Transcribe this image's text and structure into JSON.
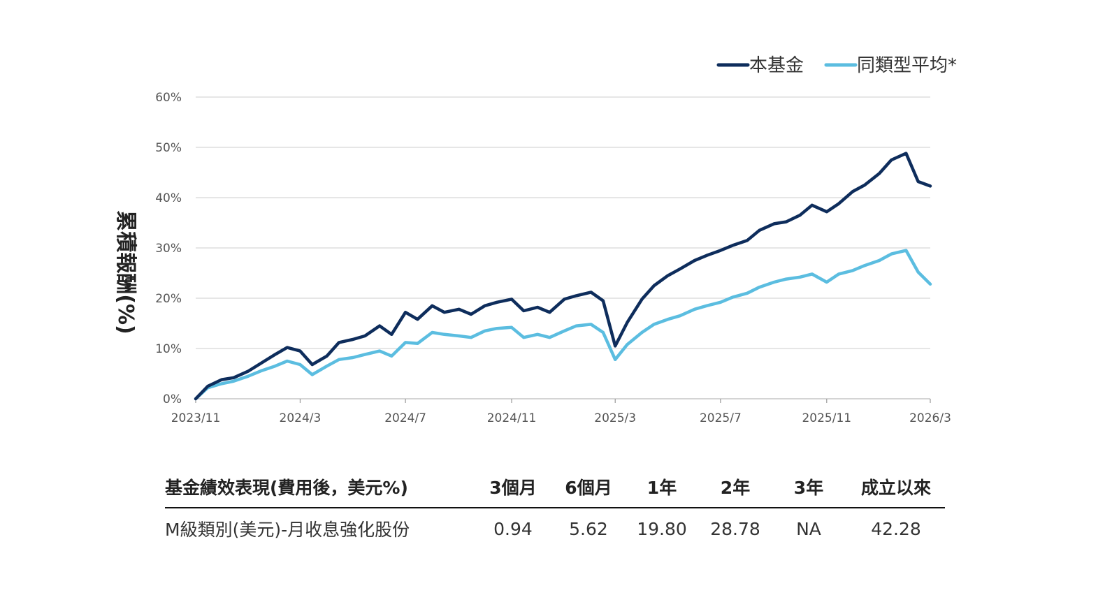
{
  "chart_data": {
    "type": "line",
    "ylabel": "累積報酬(%)",
    "ylim": [
      0,
      60
    ],
    "yticks": [
      "0%",
      "10%",
      "20%",
      "30%",
      "40%",
      "50%",
      "60%"
    ],
    "xticks": [
      "2023/11",
      "2024/3",
      "2024/7",
      "2024/11",
      "2025/3",
      "2025/7",
      "2025/11",
      "2026/3"
    ],
    "grid": true,
    "legend_position": "top-right",
    "x": [
      "2023-11-01",
      "2023-11-15",
      "2023-12-01",
      "2023-12-15",
      "2024-01-01",
      "2024-01-15",
      "2024-02-01",
      "2024-02-15",
      "2024-03-01",
      "2024-03-15",
      "2024-04-01",
      "2024-04-15",
      "2024-05-01",
      "2024-05-15",
      "2024-06-01",
      "2024-06-15",
      "2024-07-01",
      "2024-07-15",
      "2024-08-01",
      "2024-08-15",
      "2024-09-01",
      "2024-09-15",
      "2024-10-01",
      "2024-10-15",
      "2024-11-01",
      "2024-11-15",
      "2024-12-01",
      "2024-12-15",
      "2025-01-01",
      "2025-01-15",
      "2025-02-01",
      "2025-02-15",
      "2025-03-01",
      "2025-03-15",
      "2025-04-01",
      "2025-04-15",
      "2025-05-01",
      "2025-05-15",
      "2025-06-01",
      "2025-06-15",
      "2025-07-01",
      "2025-07-15",
      "2025-08-01",
      "2025-08-15",
      "2025-09-01",
      "2025-09-15",
      "2025-10-01",
      "2025-10-15",
      "2025-11-01",
      "2025-11-15",
      "2025-12-01",
      "2025-12-15",
      "2026-01-01",
      "2026-01-15",
      "2026-02-01",
      "2026-02-15",
      "2026-03-01"
    ],
    "series": [
      {
        "name": "本基金",
        "color": "#0e2d5c",
        "values": [
          0,
          2.5,
          3.8,
          4.2,
          5.5,
          7.0,
          8.8,
          10.2,
          9.5,
          6.8,
          8.5,
          11.2,
          11.8,
          12.5,
          14.5,
          12.8,
          17.2,
          15.8,
          18.5,
          17.2,
          17.8,
          16.8,
          18.5,
          19.2,
          19.8,
          17.5,
          18.2,
          17.2,
          19.8,
          20.5,
          21.2,
          19.5,
          10.5,
          15.2,
          19.8,
          22.5,
          24.5,
          25.8,
          27.5,
          28.5,
          29.5,
          30.5,
          31.5,
          33.5,
          34.8,
          35.2,
          36.5,
          38.5,
          37.2,
          38.8,
          41.2,
          42.5,
          44.8,
          47.5,
          48.8,
          43.2,
          42.3
        ]
      },
      {
        "name": "同類型平均*",
        "color": "#5bbde0",
        "values": [
          0,
          2.2,
          3.0,
          3.5,
          4.5,
          5.5,
          6.5,
          7.5,
          6.8,
          4.8,
          6.5,
          7.8,
          8.2,
          8.8,
          9.5,
          8.5,
          11.2,
          11.0,
          13.2,
          12.8,
          12.5,
          12.2,
          13.5,
          14.0,
          14.2,
          12.2,
          12.8,
          12.2,
          13.5,
          14.5,
          14.8,
          13.2,
          7.8,
          10.8,
          13.2,
          14.8,
          15.8,
          16.5,
          17.8,
          18.5,
          19.2,
          20.2,
          21.0,
          22.2,
          23.2,
          23.8,
          24.2,
          24.8,
          23.2,
          24.8,
          25.5,
          26.5,
          27.5,
          28.8,
          29.5,
          25.2,
          22.8
        ]
      }
    ]
  },
  "table": {
    "headers": [
      "基金績效表現(費用後，美元%)",
      "3個月",
      "6個月",
      "1年",
      "2年",
      "3年",
      "成立以來"
    ],
    "rows": [
      [
        "M級類別(美元)-月收息強化股份",
        "0.94",
        "5.62",
        "19.80",
        "28.78",
        "NA",
        "42.28"
      ]
    ]
  }
}
